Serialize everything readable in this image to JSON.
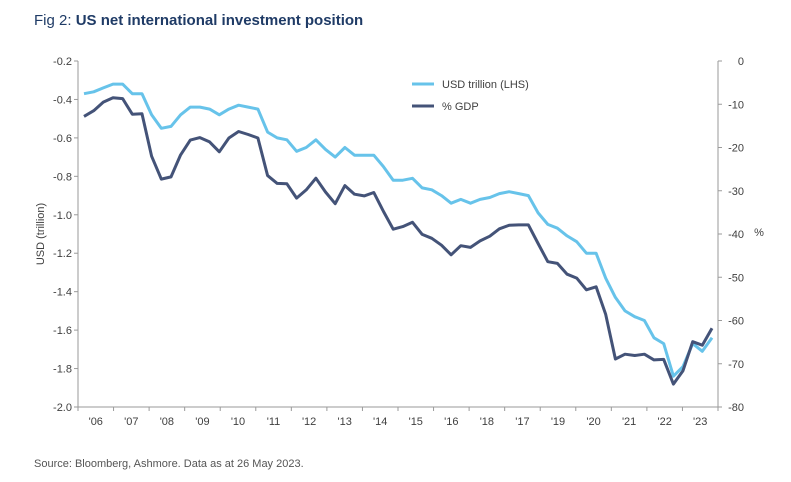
{
  "header": {
    "fig_prefix": "Fig 2:",
    "title": "US net international investment position"
  },
  "footer": {
    "source": "Source: Bloomberg, Ashmore. Data as at 26 May 2023."
  },
  "colors": {
    "usd": "#67c3ea",
    "gdp": "#445378",
    "title": "#1f3b66",
    "axis": "#9a9a9a"
  },
  "chart_data": {
    "type": "line",
    "title": "US net international investment position",
    "ylabel": "USD (trillion)",
    "y2label": "%",
    "ylim": [
      -2.0,
      -0.2
    ],
    "y2lim": [
      -80,
      0
    ],
    "yticks": [
      "-0.2",
      "-0.4",
      "-0.6",
      "-0.8",
      "-1.0",
      "-1.2",
      "-1.4",
      "-1.6",
      "-1.8",
      "-2.0"
    ],
    "y2ticks": [
      "0",
      "-10",
      "-20",
      "-30",
      "-40",
      "-50",
      "-60",
      "-70",
      "-80"
    ],
    "x_tick_labels": [
      "'06",
      "'07",
      "'08",
      "'09",
      "'10",
      "'11",
      "'12",
      "'13",
      "'14",
      "'15",
      "'16",
      "'18",
      "'17",
      "'19",
      "'20",
      "'21",
      "'22",
      "'23"
    ],
    "legend": {
      "position": "top-center",
      "entries": [
        "USD trillion (LHS)",
        "% GDP"
      ]
    },
    "grid": false,
    "series": [
      {
        "name": "USD trillion (LHS)",
        "axis": "left",
        "values": [
          -0.37,
          -0.36,
          -0.34,
          -0.32,
          -0.32,
          -0.37,
          -0.37,
          -0.48,
          -0.55,
          -0.54,
          -0.48,
          -0.44,
          -0.44,
          -0.45,
          -0.48,
          -0.45,
          -0.43,
          -0.44,
          -0.45,
          -0.57,
          -0.6,
          -0.61,
          -0.67,
          -0.65,
          -0.61,
          -0.66,
          -0.7,
          -0.65,
          -0.69,
          -0.69,
          -0.69,
          -0.75,
          -0.82,
          -0.82,
          -0.81,
          -0.86,
          -0.87,
          -0.9,
          -0.94,
          -0.92,
          -0.94,
          -0.92,
          -0.91,
          -0.89,
          -0.88,
          -0.89,
          -0.9,
          -0.99,
          -1.05,
          -1.07,
          -1.11,
          -1.14,
          -1.2,
          -1.2,
          -1.33,
          -1.43,
          -1.5,
          -1.53,
          -1.55,
          -1.64,
          -1.67,
          -1.84,
          -1.79,
          -1.67,
          -1.71,
          -1.64
        ]
      },
      {
        "name": "% GDP",
        "axis": "right",
        "values": [
          -12.8,
          -11.5,
          -9.5,
          -8.5,
          -8.7,
          -12.3,
          -12.2,
          -22.0,
          -27.3,
          -26.8,
          -21.7,
          -18.3,
          -17.7,
          -18.7,
          -21.0,
          -17.8,
          -16.3,
          -17.0,
          -17.8,
          -26.5,
          -28.3,
          -28.4,
          -31.7,
          -29.8,
          -27.1,
          -30.3,
          -33.0,
          -28.8,
          -30.8,
          -31.2,
          -30.4,
          -34.8,
          -38.9,
          -38.3,
          -37.3,
          -40.1,
          -41.0,
          -42.6,
          -44.8,
          -42.7,
          -43.1,
          -41.6,
          -40.5,
          -38.8,
          -38.0,
          -37.9,
          -37.9,
          -42.2,
          -46.4,
          -46.8,
          -49.3,
          -50.2,
          -52.9,
          -52.2,
          -58.6,
          -68.9,
          -67.8,
          -68.1,
          -67.8,
          -69.1,
          -69.0,
          -74.7,
          -71.6,
          -64.9,
          -65.7,
          -61.8
        ]
      }
    ]
  }
}
